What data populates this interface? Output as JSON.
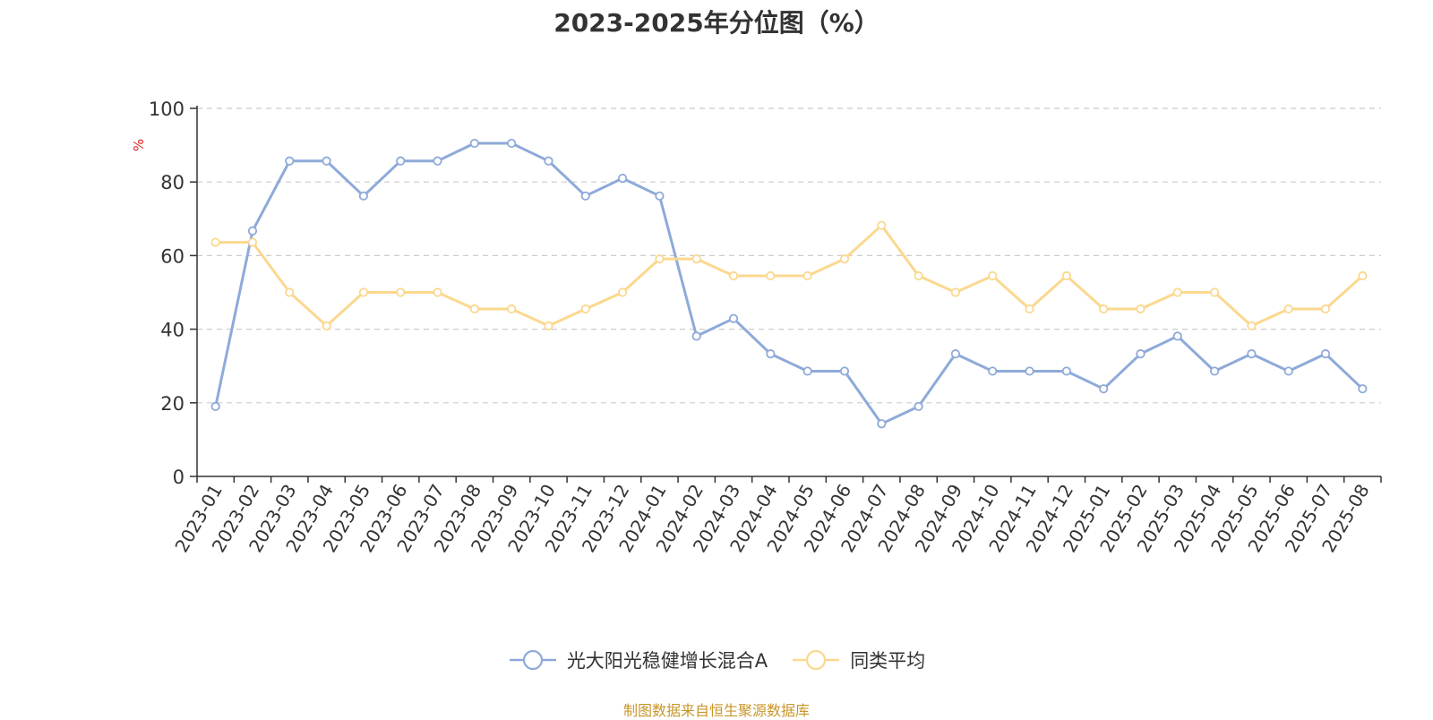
{
  "title": "2023-2025年分位图（%）",
  "source": "制图数据来自恒生聚源数据库",
  "chart_data": {
    "type": "line",
    "title": "2023-2025年分位图（%）",
    "ylabel": "%",
    "ylim": [
      0,
      100
    ],
    "yticks": [
      0,
      20,
      40,
      60,
      80,
      100
    ],
    "grid": true,
    "legend_position": "bottom",
    "categories": [
      "2023-01",
      "2023-02",
      "2023-03",
      "2023-04",
      "2023-05",
      "2023-06",
      "2023-07",
      "2023-08",
      "2023-09",
      "2023-10",
      "2023-11",
      "2023-12",
      "2024-01",
      "2024-02",
      "2024-03",
      "2024-04",
      "2024-05",
      "2024-06",
      "2024-07",
      "2024-08",
      "2024-09",
      "2024-10",
      "2024-11",
      "2024-12",
      "2025-01",
      "2025-02",
      "2025-03",
      "2025-04",
      "2025-05",
      "2025-06",
      "2025-07",
      "2025-08"
    ],
    "series": [
      {
        "name": "光大阳光稳健增长混合A",
        "color": "#8eaad9",
        "values": [
          19.0,
          66.7,
          85.7,
          85.7,
          76.2,
          85.7,
          85.7,
          90.5,
          90.5,
          85.7,
          76.2,
          81.0,
          76.2,
          38.1,
          42.9,
          33.3,
          28.6,
          28.6,
          14.3,
          19.0,
          33.3,
          28.6,
          28.6,
          28.6,
          23.8,
          33.3,
          38.1,
          28.6,
          33.3,
          28.6,
          33.3,
          23.8
        ]
      },
      {
        "name": "同类平均",
        "color": "#fbd88f",
        "values": [
          63.6,
          63.6,
          50.0,
          40.9,
          50.0,
          50.0,
          50.0,
          45.5,
          45.5,
          40.9,
          45.5,
          50.0,
          59.1,
          59.1,
          54.5,
          54.5,
          54.5,
          59.1,
          68.2,
          54.5,
          50.0,
          54.5,
          45.5,
          54.5,
          45.5,
          45.5,
          50.0,
          50.0,
          40.9,
          45.5,
          45.5,
          54.5
        ]
      }
    ]
  }
}
